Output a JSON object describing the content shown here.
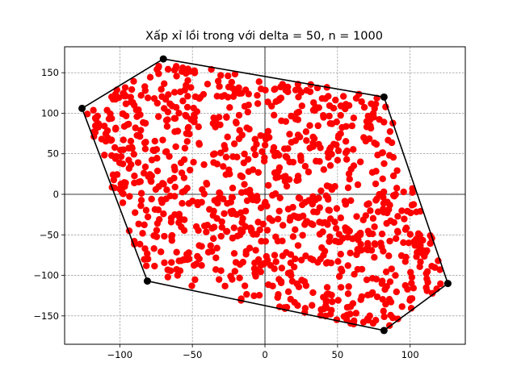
{
  "chart_data": {
    "type": "scatter",
    "title": "Xấp xỉ lồi trong với delta = 50, n = 1000",
    "xlabel": "",
    "ylabel": "",
    "xlim": [
      -138,
      138
    ],
    "ylim": [
      -185,
      182
    ],
    "xticks": [
      -100,
      -50,
      0,
      50,
      100
    ],
    "xtick_labels": [
      "−100",
      "−50",
      "0",
      "50",
      "100"
    ],
    "yticks": [
      -150,
      -100,
      -50,
      0,
      50,
      100,
      150
    ],
    "ytick_labels": [
      "−150",
      "−100",
      "−50",
      "0",
      "50",
      "100",
      "150"
    ],
    "grid": true,
    "axis_lines_at_zero": true,
    "colors": {
      "points": "#ff0000",
      "hull": "#000000",
      "grid": "#808080"
    },
    "point_count": 1000,
    "point_region": [
      [
        -70,
        167
      ],
      [
        82,
        120
      ],
      [
        126,
        -110
      ],
      [
        82,
        -168
      ],
      [
        -81,
        -107
      ],
      [
        -126,
        106
      ]
    ],
    "hull_vertices": {
      "x": [
        -70,
        82,
        126,
        82,
        -81,
        -126,
        -70
      ],
      "y": [
        167,
        120,
        -110,
        -168,
        -107,
        106,
        167
      ]
    }
  }
}
